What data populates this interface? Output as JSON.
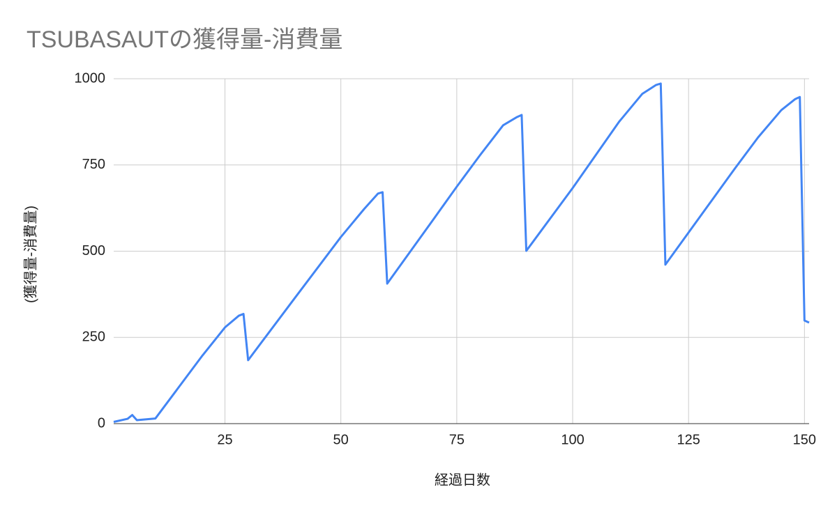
{
  "chart_data": {
    "type": "line",
    "title": "TSUBASAUTの獲得量-消費量",
    "x_label": "経過日数",
    "y_label": "(獲得量-消費量)",
    "x": [
      1,
      4,
      5,
      6,
      10,
      15,
      20,
      25,
      28,
      29,
      30,
      40,
      50,
      55,
      58,
      59,
      60,
      70,
      75,
      80,
      85,
      88,
      89,
      90,
      100,
      110,
      115,
      118,
      119,
      120,
      130,
      135,
      140,
      145,
      148,
      149,
      150,
      151
    ],
    "series": [
      {
        "name": "(獲得量-消費量)",
        "color": "#4285f4",
        "values": [
          5,
          14,
          25,
          10,
          15,
          105,
          195,
          279,
          313,
          318,
          184,
          363,
          541,
          622,
          667,
          671,
          406,
          593,
          687,
          778,
          865,
          889,
          895,
          501,
          683,
          875,
          956,
          982,
          986,
          461,
          647,
          740,
          830,
          909,
          941,
          947,
          299,
          293
        ]
      }
    ],
    "xlim": [
      1,
      151
    ],
    "ylim": [
      0,
      1000
    ],
    "xticks": [
      25,
      50,
      75,
      100,
      125,
      150
    ],
    "yticks": [
      0,
      250,
      500,
      750,
      1000
    ],
    "grid": true
  }
}
